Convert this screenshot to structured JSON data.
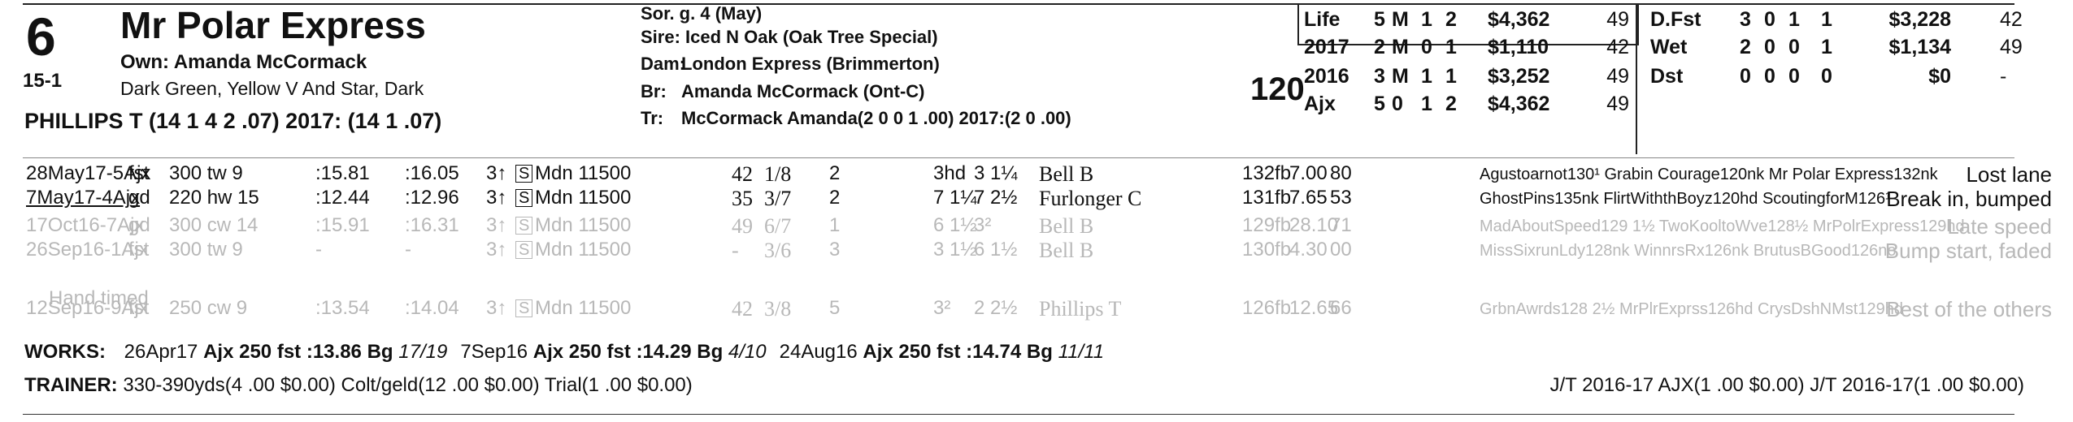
{
  "horse": {
    "number": "6",
    "name": "Mr Polar Express",
    "odds": "15-1",
    "owner": "Own: Amanda McCormack",
    "silks": "Dark Green, Yellow V And Star, Dark",
    "driver": "PHILLIPS T (14 1 4 2 .07) 2017: (14 1 .07)"
  },
  "pedigree": {
    "sex_age": "Sor. g. 4 (May)",
    "sire": "Sire: Iced N Oak (Oak Tree Special)",
    "dam_label": "Dam:",
    "dam": "London Express (Brimmerton)",
    "br_label": "Br:",
    "breeder": "Amanda McCormack (Ont-C)",
    "tr_label": "Tr:",
    "trainer": "McCormack Amanda(2 0 0 1 .00)  2017:(2 0 .00)"
  },
  "weight": "120",
  "record_left": [
    [
      "Life",
      "5",
      "M",
      "1",
      "2",
      "$4,362",
      "49"
    ],
    [
      "2017",
      "2",
      "M",
      "0",
      "1",
      "$1,110",
      "42"
    ],
    [
      "2016",
      "3",
      "M",
      "1",
      "1",
      "$3,252",
      "49"
    ],
    [
      "Ajx",
      "5",
      "0",
      "1",
      "2",
      "$4,362",
      "49"
    ]
  ],
  "record_right": [
    [
      "D.Fst",
      "3",
      "0",
      "1",
      "1",
      "$3,228",
      "42"
    ],
    [
      "Wet",
      "2",
      "0",
      "0",
      "1",
      "$1,134",
      "49"
    ],
    [
      "Dst",
      "0",
      "0",
      "0",
      "0",
      "$0",
      "-"
    ]
  ],
  "races": [
    {
      "date": "28May17-5Ajx",
      "cond": "fst",
      "dist": "300 tw 9",
      "f1": ":15.81",
      "f2": ":16.05",
      "age": "3↑",
      "s": "S",
      "cls": "Mdn 11500",
      "spd": "42",
      "pos": "1/8",
      "pp": "2",
      "fin1": "3hd",
      "fin2": "3 1¼",
      "jockey": "Bell B",
      "wt": "132fb",
      "odds": "7.00",
      "fig": "80",
      "comment": "Agustoarnot130¹ Grabin Courage120nk Mr Polar Express132nk",
      "trip": "Lost lane",
      "dim": false
    },
    {
      "date": "7May17-4Ajx",
      "cond": "gd",
      "dist": "220 hw 15",
      "f1": ":12.44",
      "f2": ":12.96",
      "age": "3↑",
      "s": "S",
      "cls": "Mdn 11500",
      "spd": "35",
      "pos": "3/7",
      "pp": "2",
      "fin1": "7 1¼",
      "fin2": "7 2½",
      "jockey": "Furlonger C",
      "wt": "131fb",
      "odds": "7.65",
      "fig": "53",
      "comment": "GhostPins135nk FlirtWiththBoyz120hd ScoutingforM126¹",
      "trip": "Break in, bumped",
      "dim": false
    },
    {
      "date": "17Oct16-7Ajx",
      "cond": "gd",
      "dist": "300 cw 14",
      "f1": ":15.91",
      "f2": ":16.31",
      "age": "3↑",
      "s": "S",
      "cls": "Mdn 11500",
      "spd": "49",
      "pos": "6/7",
      "pp": "1",
      "fin1": "6 1½",
      "fin2": "3²",
      "jockey": "Bell B",
      "wt": "129fb",
      "odds": "28.10",
      "fig": "71",
      "comment": "MadAboutSpeed129 1½ TwoKooltoWve128½ MrPolrExpress129hd",
      "trip": "Late speed",
      "dim": true
    },
    {
      "date": "26Sep16-1Ajx",
      "cond": "fst",
      "dist": "300 tw 9",
      "f1": "-",
      "f2": "-",
      "age": "3↑",
      "s": "S",
      "cls": "Mdn 11500",
      "spd": "-",
      "pos": "3/6",
      "pp": "3",
      "fin1": "3 1½",
      "fin2": "6 1½",
      "jockey": "Bell B",
      "wt": "130fb",
      "odds": "4.30",
      "fig": "00",
      "comment": "MissSixrunLdy128nk WinnrsRx126nk BrutusBGood126no",
      "trip": "Bump start, faded",
      "dim": true
    },
    {
      "date": "12Sep16-9Ajx",
      "cond": "fst",
      "dist": "250 cw 9",
      "f1": ":13.54",
      "f2": ":14.04",
      "age": "3↑",
      "s": "S",
      "cls": "Mdn 11500",
      "spd": "42",
      "pos": "3/8",
      "pp": "5",
      "fin1": "3²",
      "fin2": "2 2½",
      "jockey": "Phillips T",
      "wt": "126fb",
      "odds": "12.65",
      "fig": "66",
      "comment": "GrbnAwrds128 2½ MrPlrExprss126hd CrysDshNMst129hd",
      "trip": "Best of the others",
      "dim": true
    }
  ],
  "hand_timed": "Hand timed",
  "works": {
    "label": "WORKS:",
    "items": [
      {
        "date": "26Apr17",
        "track": "Ajx",
        "dist": "250",
        "cond": "fst",
        "time": ":13.86",
        "grade": "Bg",
        "rank": "17/19"
      },
      {
        "date": "7Sep16",
        "track": "Ajx",
        "dist": "250",
        "cond": "fst",
        "time": ":14.29",
        "grade": "Bg",
        "rank": "4/10"
      },
      {
        "date": "24Aug16",
        "track": "Ajx",
        "dist": "250",
        "cond": "fst",
        "time": ":14.74",
        "grade": "Bg",
        "rank": "11/11"
      }
    ]
  },
  "trainer_line": {
    "label": "TRAINER:",
    "text": "330-390yds(4 .00 $0.00) Colt/geld(12 .00 $0.00) Trial(1 .00 $0.00)",
    "right": "J/T 2016-17 AJX(1 .00 $0.00)  J/T 2016-17(1 .00 $0.00)"
  }
}
